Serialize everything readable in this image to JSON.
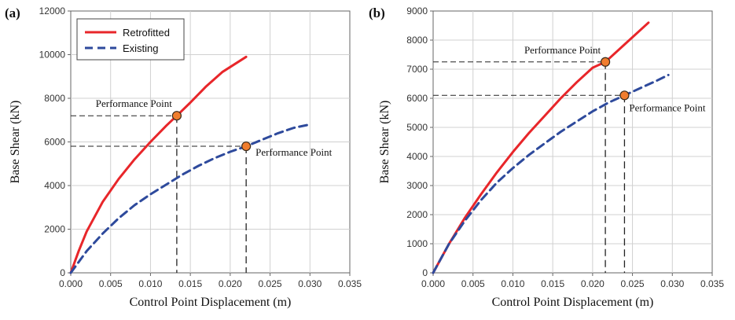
{
  "chart_data": [
    {
      "type": "line",
      "panel_label": "(a)",
      "xlabel": "Control Point Displacement (m)",
      "ylabel": "Base Shear (kN)",
      "xlim": [
        0,
        0.035
      ],
      "ylim": [
        0,
        12000
      ],
      "x_ticks": [
        "0.000",
        "0.005",
        "0.010",
        "0.015",
        "0.020",
        "0.025",
        "0.030",
        "0.035"
      ],
      "y_ticks": [
        "0",
        "2000",
        "4000",
        "6000",
        "8000",
        "10000",
        "12000"
      ],
      "grid": true,
      "legend": {
        "position": "top-left",
        "entries": [
          "Retrofitted",
          "Existing"
        ]
      },
      "series": [
        {
          "name": "Retrofitted",
          "style": "solid",
          "color": "#e8262a",
          "x": [
            0,
            0.001,
            0.002,
            0.004,
            0.006,
            0.008,
            0.01,
            0.012,
            0.0133,
            0.015,
            0.017,
            0.019,
            0.022
          ],
          "y": [
            0,
            1000,
            1900,
            3250,
            4300,
            5200,
            6000,
            6750,
            7200,
            7800,
            8550,
            9200,
            9900
          ]
        },
        {
          "name": "Existing",
          "style": "dashed",
          "color": "#2e4a9c",
          "x": [
            0,
            0.002,
            0.004,
            0.006,
            0.008,
            0.01,
            0.012,
            0.014,
            0.016,
            0.018,
            0.02,
            0.022,
            0.024,
            0.026,
            0.028,
            0.03
          ],
          "y": [
            0,
            1000,
            1800,
            2500,
            3100,
            3600,
            4050,
            4500,
            4900,
            5250,
            5550,
            5800,
            6100,
            6400,
            6650,
            6800
          ]
        }
      ],
      "performance_points": [
        {
          "label": "Performance Point",
          "x": 0.0133,
          "y": 7200,
          "label_pos": "upper-left"
        },
        {
          "label": "Performance Point",
          "x": 0.022,
          "y": 5800,
          "label_pos": "right"
        }
      ]
    },
    {
      "type": "line",
      "panel_label": "(b)",
      "xlabel": "Control Point Displacement (m)",
      "ylabel": "Base Shear (kN)",
      "xlim": [
        0,
        0.035
      ],
      "ylim": [
        0,
        9000
      ],
      "x_ticks": [
        "0.000",
        "0.005",
        "0.010",
        "0.015",
        "0.020",
        "0.025",
        "0.030",
        "0.035"
      ],
      "y_ticks": [
        "0",
        "1000",
        "2000",
        "3000",
        "4000",
        "5000",
        "6000",
        "7000",
        "8000",
        "9000"
      ],
      "grid": true,
      "series": [
        {
          "name": "Retrofitted",
          "style": "solid",
          "color": "#e8262a",
          "x": [
            0,
            0.002,
            0.004,
            0.006,
            0.008,
            0.01,
            0.012,
            0.014,
            0.016,
            0.018,
            0.02,
            0.0216,
            0.024,
            0.027
          ],
          "y": [
            0,
            1000,
            1900,
            2700,
            3450,
            4150,
            4800,
            5400,
            6000,
            6550,
            7050,
            7250,
            7850,
            8600
          ]
        },
        {
          "name": "Existing",
          "style": "dashed",
          "color": "#2e4a9c",
          "x": [
            0,
            0.002,
            0.004,
            0.006,
            0.008,
            0.01,
            0.012,
            0.014,
            0.016,
            0.018,
            0.02,
            0.022,
            0.024,
            0.026,
            0.028,
            0.0295
          ],
          "y": [
            0,
            1000,
            1800,
            2500,
            3100,
            3600,
            4050,
            4450,
            4850,
            5200,
            5550,
            5850,
            6100,
            6350,
            6600,
            6800
          ]
        }
      ],
      "performance_points": [
        {
          "label": "Performance Point",
          "x": 0.0216,
          "y": 7250,
          "label_pos": "upper-left"
        },
        {
          "label": "Performance Point",
          "x": 0.024,
          "y": 6100,
          "label_pos": "lower-right"
        }
      ]
    }
  ]
}
